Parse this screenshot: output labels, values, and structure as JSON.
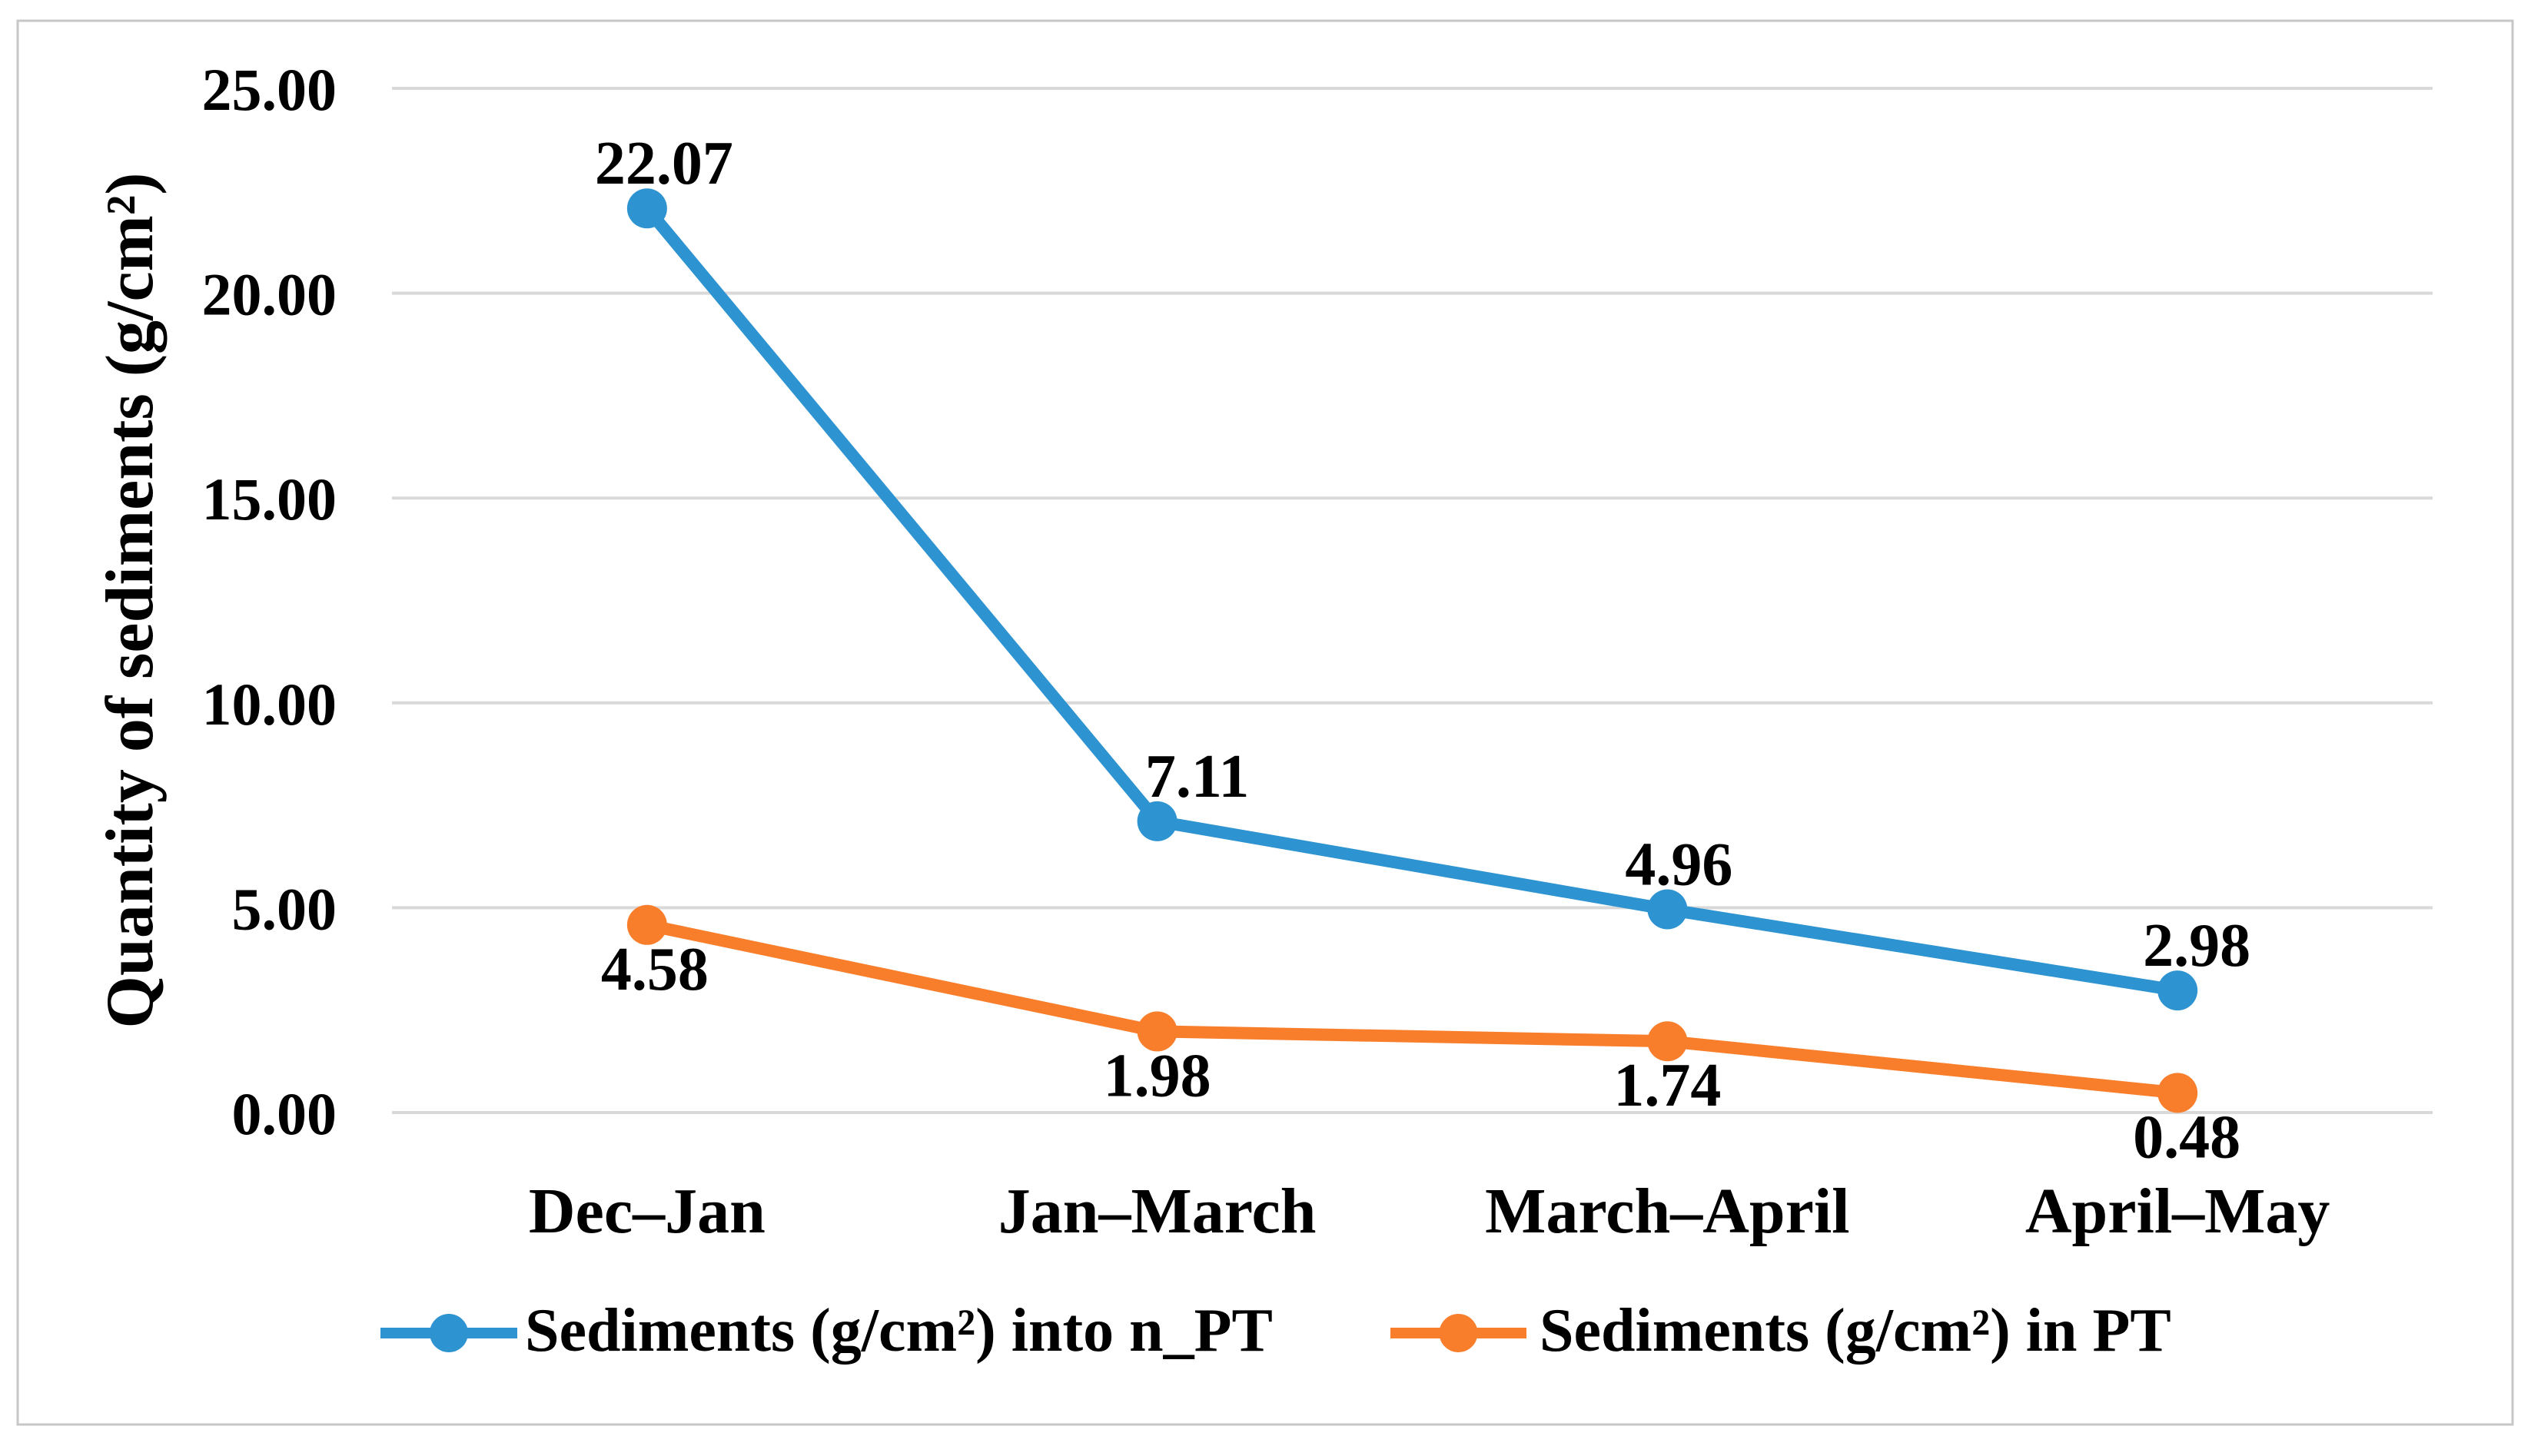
{
  "figure": {
    "background": "#ffffff",
    "border_color": "#c7c7c7"
  },
  "chart_data": {
    "type": "line",
    "title": "",
    "xlabel": "",
    "ylabel": "Quantity of sediments (g/cm²)",
    "ylim": [
      0,
      25
    ],
    "yticks": [
      "0.00",
      "5.00",
      "10.00",
      "15.00",
      "20.00",
      "25.00"
    ],
    "grid": true,
    "gridline_color": "#d9d9d9",
    "legend_position": "bottom",
    "categories": [
      "Dec–Jan",
      "Jan–March",
      "March–April",
      "April–May"
    ],
    "series": [
      {
        "name": "Sediments (g/cm²) into n_PT",
        "color": "#2e93d1",
        "values": [
          22.07,
          7.11,
          4.96,
          2.98
        ],
        "data_labels": [
          "22.07",
          "7.11",
          "4.96",
          "2.98"
        ],
        "label_position": "above"
      },
      {
        "name": "Sediments (g/cm²) in PT",
        "color": "#f97e2b",
        "values": [
          4.58,
          1.98,
          1.74,
          0.48
        ],
        "data_labels": [
          "4.58",
          "1.98",
          "1.74",
          "0.48"
        ],
        "label_position": "below"
      }
    ]
  }
}
